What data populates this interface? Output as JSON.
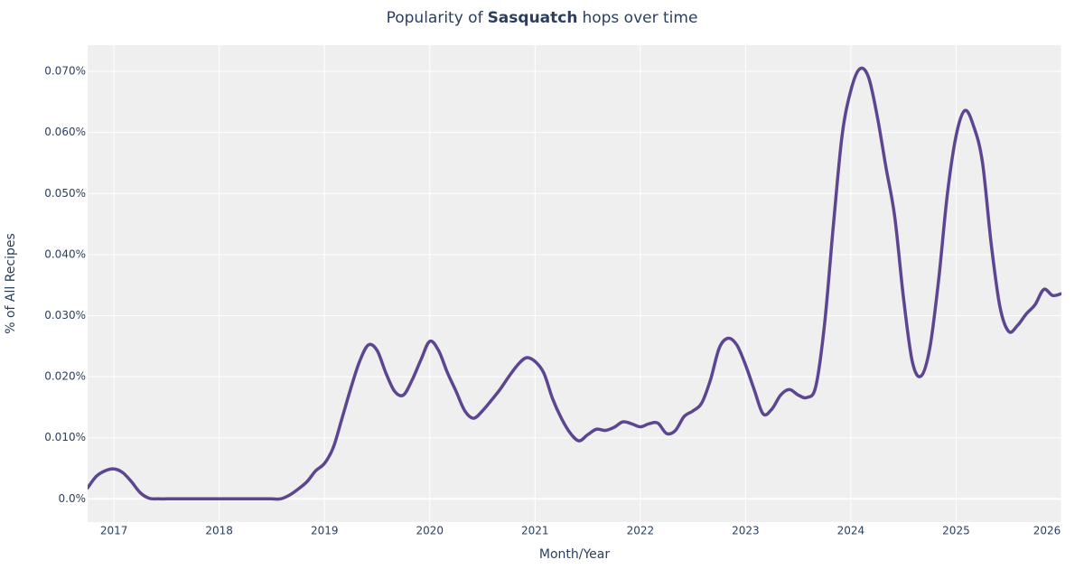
{
  "chart_data": {
    "type": "line",
    "title_parts": [
      "Popularity of",
      "Sasquatch",
      "hops over time"
    ],
    "x_label": "Month/Year",
    "y_label": "% of All Recipes",
    "x": [
      "2016-10",
      "2016-11",
      "2016-12",
      "2017-01",
      "2017-02",
      "2017-03",
      "2017-04",
      "2017-05",
      "2017-06",
      "2017-07",
      "2017-08",
      "2017-09",
      "2017-10",
      "2017-11",
      "2017-12",
      "2018-01",
      "2018-02",
      "2018-03",
      "2018-04",
      "2018-05",
      "2018-06",
      "2018-07",
      "2018-08",
      "2018-09",
      "2018-10",
      "2018-11",
      "2018-12",
      "2019-01",
      "2019-02",
      "2019-03",
      "2019-04",
      "2019-05",
      "2019-06",
      "2019-07",
      "2019-08",
      "2019-09",
      "2019-10",
      "2019-11",
      "2019-12",
      "2020-01",
      "2020-02",
      "2020-03",
      "2020-04",
      "2020-05",
      "2020-06",
      "2020-07",
      "2020-08",
      "2020-09",
      "2020-10",
      "2020-11",
      "2020-12",
      "2021-01",
      "2021-02",
      "2021-03",
      "2021-04",
      "2021-05",
      "2021-06",
      "2021-07",
      "2021-08",
      "2021-09",
      "2021-10",
      "2021-11",
      "2021-12",
      "2022-01",
      "2022-02",
      "2022-03",
      "2022-04",
      "2022-05",
      "2022-06",
      "2022-07",
      "2022-08",
      "2022-09",
      "2022-10",
      "2022-11",
      "2022-12",
      "2023-01",
      "2023-02",
      "2023-03",
      "2023-04",
      "2023-05",
      "2023-06",
      "2023-07",
      "2023-08",
      "2023-09",
      "2023-10",
      "2023-11",
      "2023-12",
      "2024-01",
      "2024-02",
      "2024-03",
      "2024-04",
      "2024-05",
      "2024-06",
      "2024-07",
      "2024-08",
      "2024-09",
      "2024-10",
      "2024-11",
      "2024-12",
      "2025-01",
      "2025-02",
      "2025-03",
      "2025-04",
      "2025-05",
      "2025-06",
      "2025-07",
      "2025-08",
      "2025-09",
      "2025-10",
      "2025-11",
      "2025-12",
      "2026-01"
    ],
    "series": [
      {
        "color": "#5c4591",
        "values": [
          0.0018,
          0.0037,
          0.0046,
          0.0049,
          0.0043,
          0.0028,
          0.001,
          0.0001,
          0,
          0,
          0,
          0,
          0,
          0,
          0,
          0,
          0,
          0,
          0,
          0,
          0,
          0,
          0,
          0.0006,
          0.0016,
          0.0028,
          0.0046,
          0.0058,
          0.0084,
          0.0132,
          0.0181,
          0.0225,
          0.0252,
          0.0243,
          0.0206,
          0.0176,
          0.017,
          0.0195,
          0.0228,
          0.0258,
          0.0243,
          0.0207,
          0.0176,
          0.0144,
          0.0132,
          0.0144,
          0.0161,
          0.0179,
          0.02,
          0.0219,
          0.0231,
          0.0225,
          0.0206,
          0.0164,
          0.0132,
          0.0108,
          0.0095,
          0.0105,
          0.0114,
          0.0112,
          0.0117,
          0.0126,
          0.0123,
          0.0118,
          0.0123,
          0.0124,
          0.0107,
          0.0112,
          0.0135,
          0.0144,
          0.0157,
          0.0195,
          0.0247,
          0.0263,
          0.0252,
          0.0219,
          0.0178,
          0.0139,
          0.0147,
          0.017,
          0.0179,
          0.017,
          0.0166,
          0.0184,
          0.0286,
          0.0447,
          0.0595,
          0.0669,
          0.0704,
          0.0691,
          0.0627,
          0.0543,
          0.0462,
          0.0329,
          0.0225,
          0.0201,
          0.0247,
          0.0358,
          0.0499,
          0.0595,
          0.0636,
          0.061,
          0.0551,
          0.0417,
          0.0314,
          0.0274,
          0.0284,
          0.0303,
          0.0318,
          0.0343,
          0.0333,
          0.0336
        ]
      }
    ],
    "xlim": [
      "2016-10",
      "2026-01"
    ],
    "xticks": [
      {
        "value": "2017-01",
        "label": "2017"
      },
      {
        "value": "2018-01",
        "label": "2018"
      },
      {
        "value": "2019-01",
        "label": "2019"
      },
      {
        "value": "2020-01",
        "label": "2020"
      },
      {
        "value": "2021-01",
        "label": "2021"
      },
      {
        "value": "2022-01",
        "label": "2022"
      },
      {
        "value": "2023-01",
        "label": "2023"
      },
      {
        "value": "2024-01",
        "label": "2024"
      },
      {
        "value": "2025-01",
        "label": "2025"
      },
      {
        "value": "2026-01",
        "label": "2026"
      }
    ],
    "ylim": [
      -0.0038,
      0.0743
    ],
    "yticks": [
      {
        "value": 0,
        "label": "0.0%"
      },
      {
        "value": 0.01,
        "label": "0.010%"
      },
      {
        "value": 0.02,
        "label": "0.020%"
      },
      {
        "value": 0.03,
        "label": "0.030%"
      },
      {
        "value": 0.04,
        "label": "0.040%"
      },
      {
        "value": 0.05,
        "label": "0.050%"
      },
      {
        "value": 0.06,
        "label": "0.060%"
      },
      {
        "value": 0.07,
        "label": "0.070%"
      }
    ],
    "grid": true
  }
}
